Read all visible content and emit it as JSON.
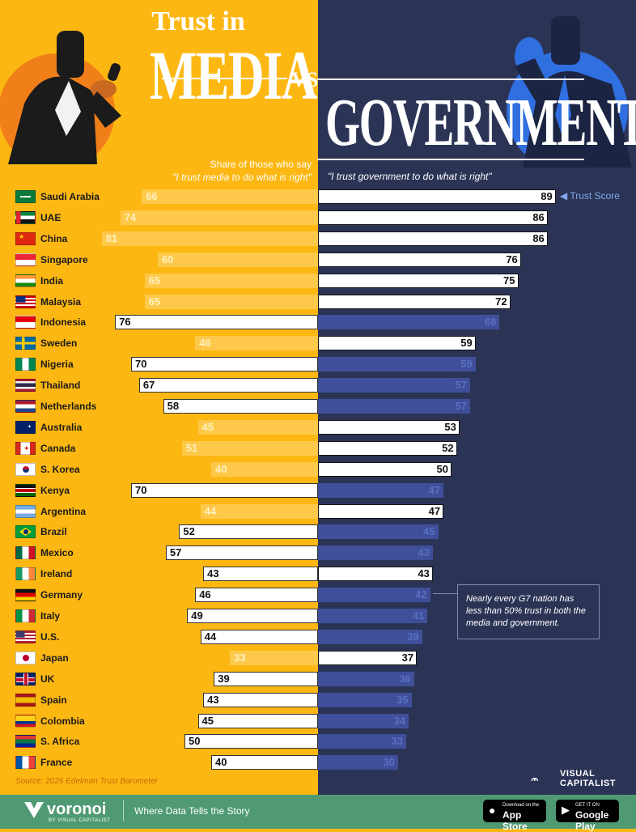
{
  "header": {
    "title_top": "Trust in",
    "title_media": "MEDIA",
    "title_vs": "VS",
    "title_gov": "GOVERNMENT",
    "subtitle_left_line1": "Share of those who say",
    "subtitle_left_line2": "\"I trust media to do what is right\"",
    "subtitle_right": "\"I trust government to do what is right\""
  },
  "legend": {
    "trust_score_label": "Trust Score"
  },
  "annotation": {
    "text": "Nearly every G7 nation has less than 50% trust in both the media and government."
  },
  "source": "Source: 2026 Edelman Trust Barometer",
  "brand": {
    "vc_line1": "VISUAL",
    "vc_line2": "CAPITALIST"
  },
  "footer": {
    "brand": "voronoi",
    "brand_sub": "BY VISUAL CAPITALIST",
    "tagline": "Where Data Tells the Story",
    "app_store_small": "Download on the",
    "app_store_big": "App Store",
    "google_small": "GET IT ON",
    "google_big": "Google Play"
  },
  "colors": {
    "media_bg": "#fdb712",
    "gov_bg": "#2c3456",
    "media_bar_dim": "#fec94a",
    "media_val_dim": "#fff0c2",
    "gov_bar_dim": "#3f4f9a",
    "gov_val_dim": "#5a6fc0",
    "highlight_bar": "#ffffff",
    "highlight_text": "#111111"
  },
  "chart_data": {
    "type": "bar",
    "orientation": "horizontal-diverging",
    "categories": [
      "Saudi Arabia",
      "UAE",
      "China",
      "Singapore",
      "India",
      "Malaysia",
      "Indonesia",
      "Sweden",
      "Nigeria",
      "Thailand",
      "Netherlands",
      "Australia",
      "Canada",
      "S. Korea",
      "Kenya",
      "Argentina",
      "Brazil",
      "Mexico",
      "Ireland",
      "Germany",
      "Italy",
      "U.S.",
      "Japan",
      "UK",
      "Spain",
      "Colombia",
      "S. Africa",
      "France"
    ],
    "flags": [
      "saudi",
      "uae",
      "china",
      "singapore",
      "india",
      "malaysia",
      "indonesia",
      "sweden",
      "nigeria",
      "thailand",
      "netherlands",
      "australia",
      "canada",
      "skorea",
      "kenya",
      "argentina",
      "brazil",
      "mexico",
      "ireland",
      "germany",
      "italy",
      "us",
      "japan",
      "uk",
      "spain",
      "colombia",
      "safrica",
      "france"
    ],
    "series": [
      {
        "name": "\"I trust media to do what is right\"",
        "values": [
          66,
          74,
          81,
          60,
          65,
          65,
          76,
          46,
          70,
          67,
          58,
          45,
          51,
          40,
          70,
          44,
          52,
          57,
          43,
          46,
          49,
          44,
          33,
          39,
          43,
          45,
          50,
          40
        ],
        "highlight": [
          false,
          false,
          false,
          false,
          false,
          false,
          true,
          false,
          true,
          true,
          true,
          false,
          false,
          false,
          true,
          false,
          true,
          true,
          true,
          true,
          true,
          true,
          false,
          true,
          true,
          true,
          true,
          true
        ]
      },
      {
        "name": "\"I trust government to do what is right\"",
        "values": [
          89,
          86,
          86,
          76,
          75,
          72,
          68,
          59,
          59,
          57,
          57,
          53,
          52,
          50,
          47,
          47,
          45,
          43,
          43,
          42,
          41,
          39,
          37,
          36,
          35,
          34,
          33,
          30
        ],
        "highlight": [
          true,
          true,
          true,
          true,
          true,
          true,
          false,
          true,
          false,
          false,
          false,
          true,
          true,
          true,
          false,
          true,
          false,
          false,
          true,
          false,
          false,
          false,
          true,
          false,
          false,
          false,
          false,
          false
        ]
      }
    ],
    "xlim": [
      0,
      100
    ]
  }
}
